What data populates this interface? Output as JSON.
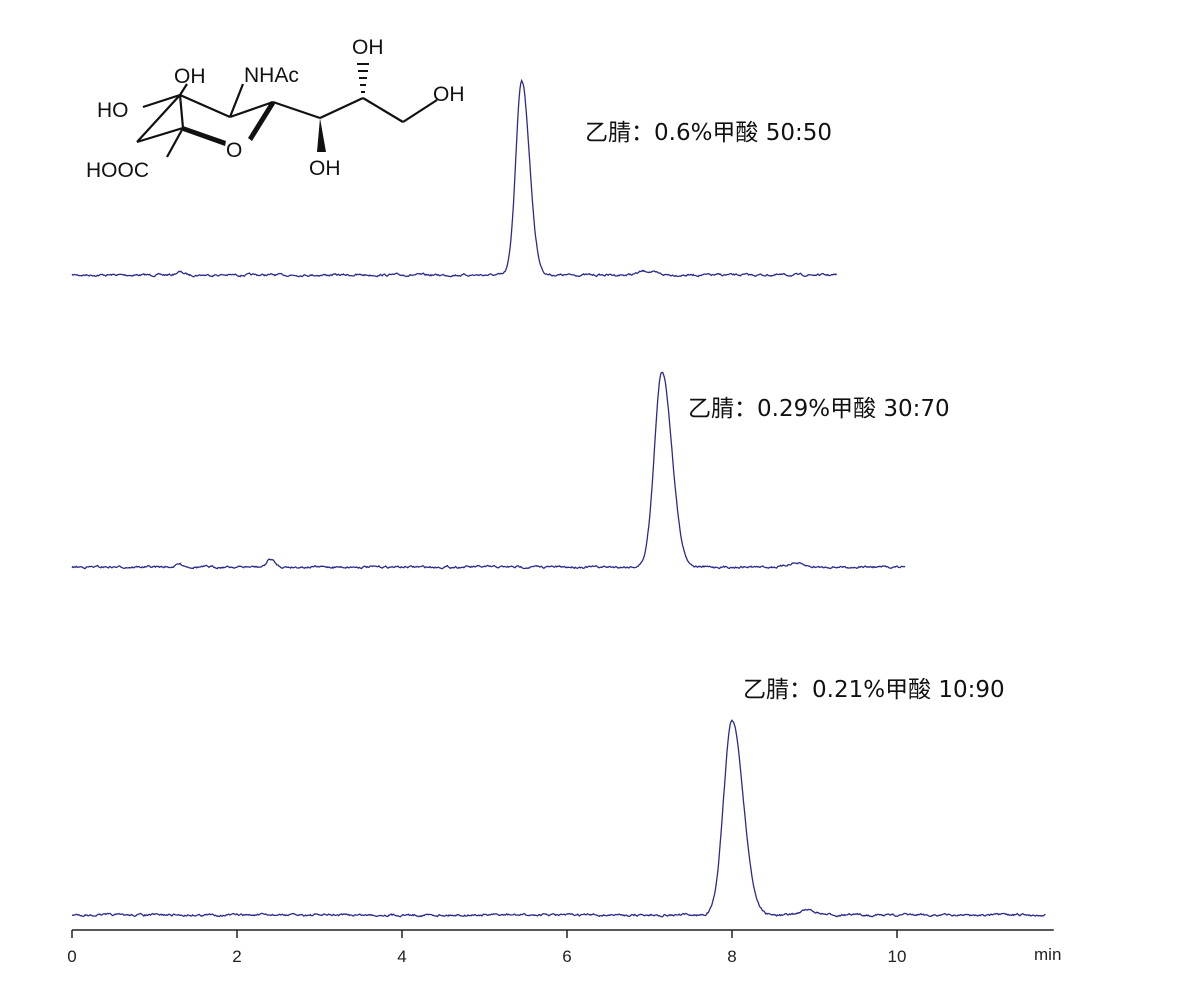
{
  "chart_data": {
    "type": "line",
    "title": "",
    "xlabel": "min",
    "ylabel": "",
    "xlim": [
      0,
      11.9
    ],
    "xticks": [
      "0",
      "2",
      "4",
      "6",
      "8",
      "10"
    ],
    "grid": false,
    "line_color": "#2b2b8c",
    "series": [
      {
        "annotation": "乙腈：0.6%甲酸  50:50",
        "x_end": 9.27,
        "peaks": [
          {
            "rt": 5.45,
            "relative_height": 100,
            "width": 0.07
          },
          {
            "rt": 1.3,
            "relative_height": 1.5,
            "width": 0.04
          },
          {
            "rt": 6.95,
            "relative_height": 2,
            "width": 0.08
          }
        ]
      },
      {
        "annotation": "乙腈：0.29%甲酸  30:70",
        "x_end": 10.1,
        "peaks": [
          {
            "rt": 7.15,
            "relative_height": 100,
            "width": 0.09
          },
          {
            "rt": 1.3,
            "relative_height": 1.5,
            "width": 0.04
          },
          {
            "rt": 2.4,
            "relative_height": 4,
            "width": 0.04
          },
          {
            "rt": 8.75,
            "relative_height": 2,
            "width": 0.07
          }
        ]
      },
      {
        "annotation": "乙腈：0.21%甲酸  10:90",
        "x_end": 11.8,
        "peaks": [
          {
            "rt": 8.0,
            "relative_height": 100,
            "width": 0.1
          },
          {
            "rt": 8.9,
            "relative_height": 2.5,
            "width": 0.08
          }
        ]
      }
    ]
  },
  "structure_labels": {
    "oh1": "OH",
    "ho": "HO",
    "nhac": "NHAc",
    "hooc": "HOOC",
    "o": "O",
    "oh2": "OH",
    "oh3": "OH",
    "oh4": "OH"
  }
}
